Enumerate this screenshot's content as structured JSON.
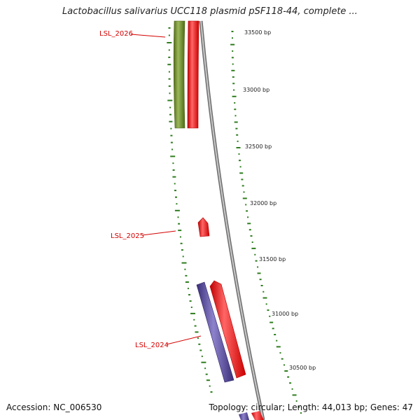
{
  "title": "Lactobacillus salivarius UCC118 plasmid pSF118-44, complete ...",
  "footer": {
    "accession": "Accession: NC_006530",
    "summary": "Topology: circular; Length: 44,013 bp; Genes: 47"
  },
  "colors": {
    "backbone": "#8a8a8a",
    "gene_forward": "#ee0000",
    "gene_reverse_green": "#6b8e23",
    "gene_reverse_purple": "#4b3f8f",
    "gc_ticks": "#2e7d1e",
    "label_red": "#d40000"
  },
  "genes": [
    {
      "name": "LSL_2026",
      "label": "LSL_2026"
    },
    {
      "name": "LSL_2025",
      "label": "LSL_2025"
    },
    {
      "name": "LSL_2024",
      "label": "LSL_2024"
    }
  ],
  "bp_ticks": [
    {
      "label": "33500 bp"
    },
    {
      "label": "33000 bp"
    },
    {
      "label": "32500 bp"
    },
    {
      "label": "32000 bp"
    },
    {
      "label": "31500 bp"
    },
    {
      "label": "31000 bp"
    },
    {
      "label": "30500 bp"
    }
  ]
}
